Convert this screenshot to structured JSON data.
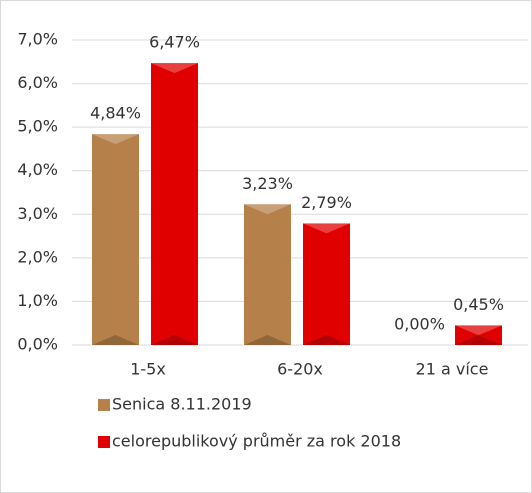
{
  "chart_data": {
    "type": "bar",
    "categories": [
      "1-5x",
      "6-20x",
      "21 a více"
    ],
    "series": [
      {
        "name": "Senica 8.11.2019",
        "color": "#b5804a",
        "values": [
          4.84,
          3.23,
          0.0
        ],
        "value_labels": [
          "4,84%",
          "3,23%",
          "0,00%"
        ]
      },
      {
        "name": "celorepublikový průměr za rok 2018",
        "color": "#e00000",
        "values": [
          6.47,
          2.79,
          0.45
        ],
        "value_labels": [
          "6,47%",
          "2,79%",
          "0,45%"
        ]
      }
    ],
    "ylim": [
      0,
      7
    ],
    "yticks": [
      {
        "value": 0,
        "label": "0,0%"
      },
      {
        "value": 1,
        "label": "1,0%"
      },
      {
        "value": 2,
        "label": "2,0%"
      },
      {
        "value": 3,
        "label": "3,0%"
      },
      {
        "value": 4,
        "label": "4,0%"
      },
      {
        "value": 5,
        "label": "5,0%"
      },
      {
        "value": 6,
        "label": "6,0%"
      },
      {
        "value": 7,
        "label": "7,0%"
      }
    ],
    "grid": true,
    "legend": "bottom"
  }
}
